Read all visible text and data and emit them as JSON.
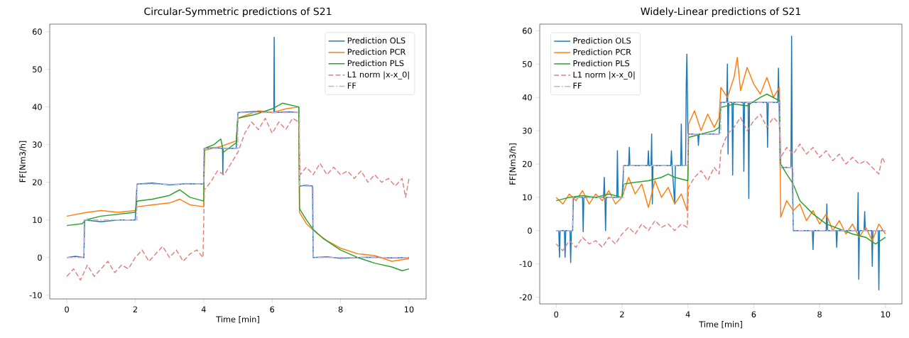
{
  "chart_data": [
    {
      "type": "line",
      "title": "Circular-Symmetric predictions of S21",
      "xlabel": "Time [min]",
      "ylabel": "FF[Nm3/h]",
      "xlim": [
        -0.5,
        10.5
      ],
      "ylim": [
        -11,
        62
      ],
      "xticks": [
        0,
        2,
        4,
        6,
        8,
        10
      ],
      "yticks": [
        -10,
        0,
        10,
        20,
        30,
        40,
        50,
        60
      ],
      "legend": "top right",
      "series": [
        {
          "name": "Prediction OLS",
          "color": "#1f77b4",
          "x": [
            0,
            0.25,
            0.5,
            0.52,
            1,
            1.5,
            2.0,
            2.05,
            2.5,
            3,
            3.5,
            4.0,
            4.02,
            4.3,
            4.55,
            4.56,
            4.57,
            4.58,
            4.95,
            5.0,
            5.5,
            6.05,
            6.06,
            6.07,
            6.5,
            6.78,
            6.8,
            7.0,
            7.18,
            7.2,
            7.6,
            8,
            8.5,
            9,
            9.5,
            10
          ],
          "values": [
            0,
            0.3,
            0,
            10,
            9.5,
            10,
            10,
            19.5,
            19.8,
            19.3,
            19.6,
            19.5,
            29,
            29.2,
            29,
            22,
            29,
            29,
            29,
            38.5,
            38.8,
            38.5,
            58.5,
            38.5,
            38.7,
            38.5,
            19,
            19.2,
            19,
            0,
            0.2,
            -0.2,
            0,
            0.1,
            -0.1,
            0
          ]
        },
        {
          "name": "Prediction PCR",
          "color": "#ff7f0e",
          "x": [
            0,
            0.3,
            0.6,
            1,
            1.5,
            2.0,
            2.05,
            2.5,
            3,
            3.3,
            3.6,
            4.0,
            4.02,
            4.5,
            4.95,
            5.0,
            5.3,
            5.6,
            6,
            6.4,
            6.78,
            6.8,
            7.0,
            7.3,
            7.6,
            8,
            8.5,
            9,
            9.5,
            10
          ],
          "values": [
            11,
            11.5,
            12,
            12.5,
            12,
            12.5,
            13.5,
            14,
            14.5,
            15.5,
            14,
            13.5,
            28.5,
            29.5,
            31,
            37,
            38,
            39,
            38.5,
            39.5,
            40,
            12,
            9,
            6.5,
            4.5,
            2.5,
            1,
            0.5,
            -1,
            -0.3
          ]
        },
        {
          "name": "Prediction PLS",
          "color": "#2ca02c",
          "x": [
            0,
            0.45,
            0.55,
            1,
            1.5,
            2.0,
            2.05,
            2.5,
            3,
            3.3,
            3.6,
            4.0,
            4.02,
            4.3,
            4.5,
            4.58,
            4.95,
            5.0,
            5.5,
            6,
            6.3,
            6.78,
            6.8,
            7.0,
            7.2,
            7.5,
            8,
            8.5,
            9,
            9.5,
            9.8,
            10
          ],
          "values": [
            8.5,
            9,
            10,
            11,
            11.5,
            12,
            15,
            15.5,
            16.5,
            18,
            16,
            15,
            29,
            30,
            31.5,
            28,
            30.5,
            37,
            38,
            39.5,
            41,
            40,
            13,
            10,
            7.5,
            5,
            2,
            0,
            -1.5,
            -2.5,
            -3.5,
            -3
          ]
        },
        {
          "name": "L1 norm |x-x_0|",
          "color": "#e37f7f",
          "line_style": "dashed",
          "x": [
            0,
            0.2,
            0.4,
            0.6,
            0.8,
            1.0,
            1.2,
            1.4,
            1.6,
            1.8,
            2.0,
            2.2,
            2.4,
            2.6,
            2.8,
            3.0,
            3.2,
            3.4,
            3.6,
            3.8,
            3.98,
            4.02,
            4.2,
            4.4,
            4.6,
            4.8,
            5.0,
            5.2,
            5.4,
            5.6,
            5.8,
            6.0,
            6.2,
            6.4,
            6.6,
            6.78,
            6.82,
            7.0,
            7.2,
            7.4,
            7.6,
            7.8,
            8.0,
            8.2,
            8.4,
            8.6,
            8.8,
            9.0,
            9.2,
            9.4,
            9.6,
            9.8,
            9.9,
            10
          ],
          "values": [
            -5,
            -3,
            -6,
            -2,
            -5,
            -3,
            -1,
            -4,
            -2,
            -3,
            0,
            2,
            -1,
            1,
            3,
            0,
            2,
            -1,
            1,
            2,
            0,
            18,
            20,
            23,
            22,
            25,
            28,
            33,
            36,
            34,
            37,
            33,
            36,
            34,
            37,
            36,
            22,
            24,
            22,
            25,
            22,
            24,
            22,
            23,
            21,
            23,
            20,
            22,
            20,
            21,
            19,
            21,
            16,
            21
          ]
        },
        {
          "name": "FF",
          "color": "#c7b0df",
          "line_style": "dashdot",
          "x": [
            0,
            0.5,
            0.5,
            2.05,
            2.05,
            4,
            4,
            5,
            5,
            6.8,
            6.8,
            7.2,
            7.2,
            10
          ],
          "values": [
            0,
            0,
            10,
            10,
            19.5,
            19.5,
            29,
            29,
            38.5,
            38.5,
            19,
            19,
            0,
            0
          ]
        }
      ]
    },
    {
      "type": "line",
      "title": "Widely-Linear predictions of S21",
      "xlabel": "Time [min]",
      "ylabel": "FF[Nm3/h]",
      "xlim": [
        -0.5,
        10.5
      ],
      "ylim": [
        -22,
        62
      ],
      "xticks": [
        0,
        2,
        4,
        6,
        8,
        10
      ],
      "yticks": [
        -20,
        -10,
        0,
        10,
        20,
        30,
        40,
        50,
        60
      ],
      "legend": "top left",
      "series": [
        {
          "name": "Prediction OLS",
          "color": "#1f77b4",
          "x": [
            0,
            0.08,
            0.1,
            0.12,
            0.25,
            0.27,
            0.29,
            0.42,
            0.44,
            0.46,
            0.5,
            0.52,
            0.8,
            0.82,
            0.84,
            1.44,
            1.46,
            1.48,
            1.5,
            1.52,
            1.84,
            1.86,
            1.88,
            2.0,
            2.05,
            2.2,
            2.22,
            2.24,
            2.78,
            2.8,
            2.82,
            2.88,
            2.9,
            2.92,
            2.94,
            3.48,
            3.5,
            3.52,
            3.6,
            3.62,
            3.78,
            3.8,
            3.82,
            3.93,
            3.95,
            3.97,
            4.0,
            4.3,
            4.32,
            4.34,
            4.95,
            5.0,
            5.18,
            5.2,
            5.22,
            5.24,
            5.34,
            5.36,
            5.38,
            5.68,
            5.7,
            5.72,
            5.83,
            5.85,
            5.87,
            6.4,
            6.42,
            6.44,
            6.73,
            6.75,
            6.77,
            6.8,
            7.13,
            7.15,
            7.17,
            7.2,
            7.78,
            7.8,
            7.82,
            8.2,
            8.22,
            8.24,
            8.5,
            8.52,
            8.54,
            9.15,
            9.17,
            9.19,
            9.21,
            9.35,
            9.37,
            9.39,
            9.58,
            9.6,
            9.62,
            9.78,
            9.8,
            9.82,
            10
          ],
          "values": [
            0,
            0,
            -8,
            0,
            0,
            -8,
            0,
            0,
            -9.6,
            0,
            0,
            10,
            10,
            -0.3,
            10,
            10,
            16,
            10,
            0,
            10,
            10,
            24,
            10,
            10,
            19.5,
            19.5,
            25,
            19.5,
            19.5,
            24,
            19.5,
            19.5,
            29,
            8,
            19.5,
            19.5,
            24,
            19.5,
            8,
            19.5,
            19.5,
            32,
            19.5,
            19.5,
            44,
            53,
            29,
            29,
            25.6,
            29,
            29,
            38.5,
            38.5,
            50,
            23,
            38.5,
            38.5,
            16.7,
            38.5,
            38.5,
            17.8,
            38.5,
            38.5,
            9.6,
            38.5,
            38.5,
            25,
            38.5,
            38.5,
            48.8,
            38.5,
            19,
            19,
            58.4,
            19,
            0,
            0,
            -5.7,
            0,
            0,
            8,
            0,
            0,
            -5,
            0,
            0,
            11.4,
            -14.6,
            0,
            0,
            5.7,
            0,
            0,
            -10.7,
            0,
            0,
            -17.8,
            0,
            0
          ]
        },
        {
          "name": "Prediction PCR",
          "color": "#ff7f0e",
          "x": [
            0,
            0.2,
            0.4,
            0.6,
            0.8,
            1.0,
            1.2,
            1.4,
            1.6,
            1.8,
            2.0,
            2.2,
            2.4,
            2.6,
            2.8,
            3.0,
            3.2,
            3.4,
            3.6,
            3.8,
            3.98,
            4.02,
            4.2,
            4.4,
            4.6,
            4.8,
            4.95,
            5.0,
            5.2,
            5.4,
            5.5,
            5.6,
            5.8,
            6.0,
            6.2,
            6.4,
            6.6,
            6.78,
            6.82,
            7.0,
            7.2,
            7.4,
            7.6,
            7.8,
            8.0,
            8.2,
            8.4,
            8.6,
            8.8,
            9.0,
            9.2,
            9.4,
            9.6,
            9.8,
            10
          ],
          "values": [
            10,
            8,
            11,
            9,
            12,
            8,
            11,
            9,
            12,
            8,
            10,
            16,
            11,
            14,
            7,
            15,
            10,
            13,
            8,
            11,
            6,
            32,
            36,
            30,
            35,
            31,
            34,
            43,
            40,
            46,
            52,
            42,
            49,
            44,
            41,
            46,
            40,
            43,
            4,
            9,
            6,
            8,
            3,
            6,
            2,
            5,
            0,
            3,
            -1,
            2,
            -2,
            1,
            -3,
            2,
            -1
          ]
        },
        {
          "name": "Prediction PLS",
          "color": "#2ca02c",
          "x": [
            0,
            0.4,
            0.8,
            1.2,
            1.6,
            2.0,
            2.05,
            2.4,
            2.8,
            3.2,
            3.4,
            3.6,
            4.0,
            4.02,
            4.4,
            4.8,
            4.95,
            5.0,
            5.4,
            5.8,
            6.2,
            6.4,
            6.78,
            6.82,
            7.0,
            7.2,
            7.4,
            7.8,
            8.2,
            8.6,
            9.0,
            9.4,
            9.7,
            10
          ],
          "values": [
            9,
            10,
            10.5,
            10,
            11,
            10,
            14,
            14.5,
            15,
            16,
            17,
            16,
            15,
            28,
            29,
            30,
            31,
            37,
            38,
            37.5,
            40,
            41,
            39,
            20,
            17,
            14,
            9,
            5,
            2,
            0.5,
            -1,
            -2,
            -4,
            -2
          ]
        },
        {
          "name": "L1 norm |x-x_0|",
          "color": "#e37f7f",
          "line_style": "dashed",
          "x": [
            0,
            0.2,
            0.4,
            0.6,
            0.8,
            1.0,
            1.2,
            1.4,
            1.6,
            1.8,
            2.0,
            2.2,
            2.4,
            2.6,
            2.8,
            3.0,
            3.2,
            3.4,
            3.6,
            3.8,
            3.98,
            4.02,
            4.2,
            4.4,
            4.6,
            4.8,
            4.95,
            5.0,
            5.2,
            5.4,
            5.6,
            5.8,
            6.0,
            6.2,
            6.4,
            6.6,
            6.78,
            6.82,
            7.0,
            7.2,
            7.4,
            7.6,
            7.8,
            8.0,
            8.2,
            8.4,
            8.6,
            8.8,
            9.0,
            9.2,
            9.4,
            9.6,
            9.8,
            9.9,
            10
          ],
          "values": [
            -4,
            -6,
            -3,
            -5,
            -2,
            -4,
            -3,
            -5,
            -2,
            -4,
            -1,
            1,
            -1,
            2,
            0,
            3,
            1,
            2,
            0,
            2,
            1,
            13,
            16,
            18,
            15,
            19,
            17,
            24,
            29,
            31,
            34,
            30,
            33,
            35,
            31,
            34,
            32,
            22,
            25,
            23,
            26,
            23,
            25,
            22,
            24,
            21,
            23,
            20,
            22,
            20,
            21,
            19,
            17,
            22,
            20
          ]
        },
        {
          "name": "FF",
          "color": "#c7b0df",
          "line_style": "dashdot",
          "x": [
            0,
            0.5,
            0.5,
            2.05,
            2.05,
            4,
            4,
            5,
            5,
            6.8,
            6.8,
            7.2,
            7.2,
            10
          ],
          "values": [
            0,
            0,
            10,
            10,
            19.5,
            19.5,
            29,
            29,
            38.5,
            38.5,
            19,
            19,
            0,
            0
          ]
        }
      ]
    }
  ]
}
